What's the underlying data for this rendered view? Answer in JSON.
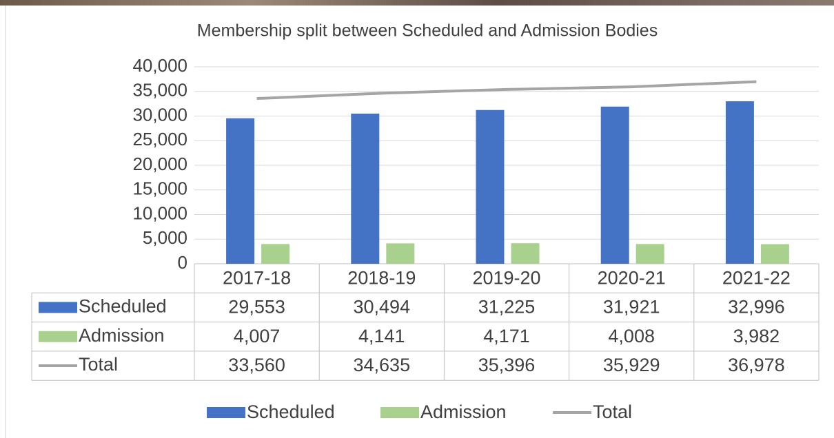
{
  "chart_data": {
    "type": "bar",
    "title": "Membership split between Scheduled and Admission Bodies",
    "categories": [
      "2017-18",
      "2018-19",
      "2019-20",
      "2020-21",
      "2021-22"
    ],
    "series": [
      {
        "name": "Scheduled",
        "type": "bar",
        "color": "#4472c4",
        "values": [
          29553,
          30494,
          31225,
          31921,
          32996
        ],
        "value_labels": [
          "29,553",
          "30,494",
          "31,225",
          "31,921",
          "32,996"
        ]
      },
      {
        "name": "Admission",
        "type": "bar",
        "color": "#a9d18e",
        "values": [
          4007,
          4141,
          4171,
          4008,
          3982
        ],
        "value_labels": [
          "4,007",
          "4,141",
          "4,171",
          "4,008",
          "3,982"
        ]
      },
      {
        "name": "Total",
        "type": "line",
        "color": "#a5a5a5",
        "values": [
          33560,
          34635,
          35396,
          35929,
          36978
        ],
        "value_labels": [
          "33,560",
          "34,635",
          "35,396",
          "35,929",
          "36,978"
        ]
      }
    ],
    "ylim": [
      0,
      40000
    ],
    "yticks": [
      0,
      {
        "value": 5000,
        "label": "5,000"
      },
      {
        "value": 10000,
        "label": "10,000"
      },
      {
        "value": 15000,
        "label": "15,000"
      },
      {
        "value": 20000,
        "label": "20,000"
      },
      {
        "value": 25000,
        "label": "25,000"
      },
      {
        "value": 30000,
        "label": "30,000"
      },
      {
        "value": 35000,
        "label": "35,000"
      },
      {
        "value": 40000,
        "label": "40,000"
      }
    ],
    "grid": true,
    "legend": "bottom"
  }
}
